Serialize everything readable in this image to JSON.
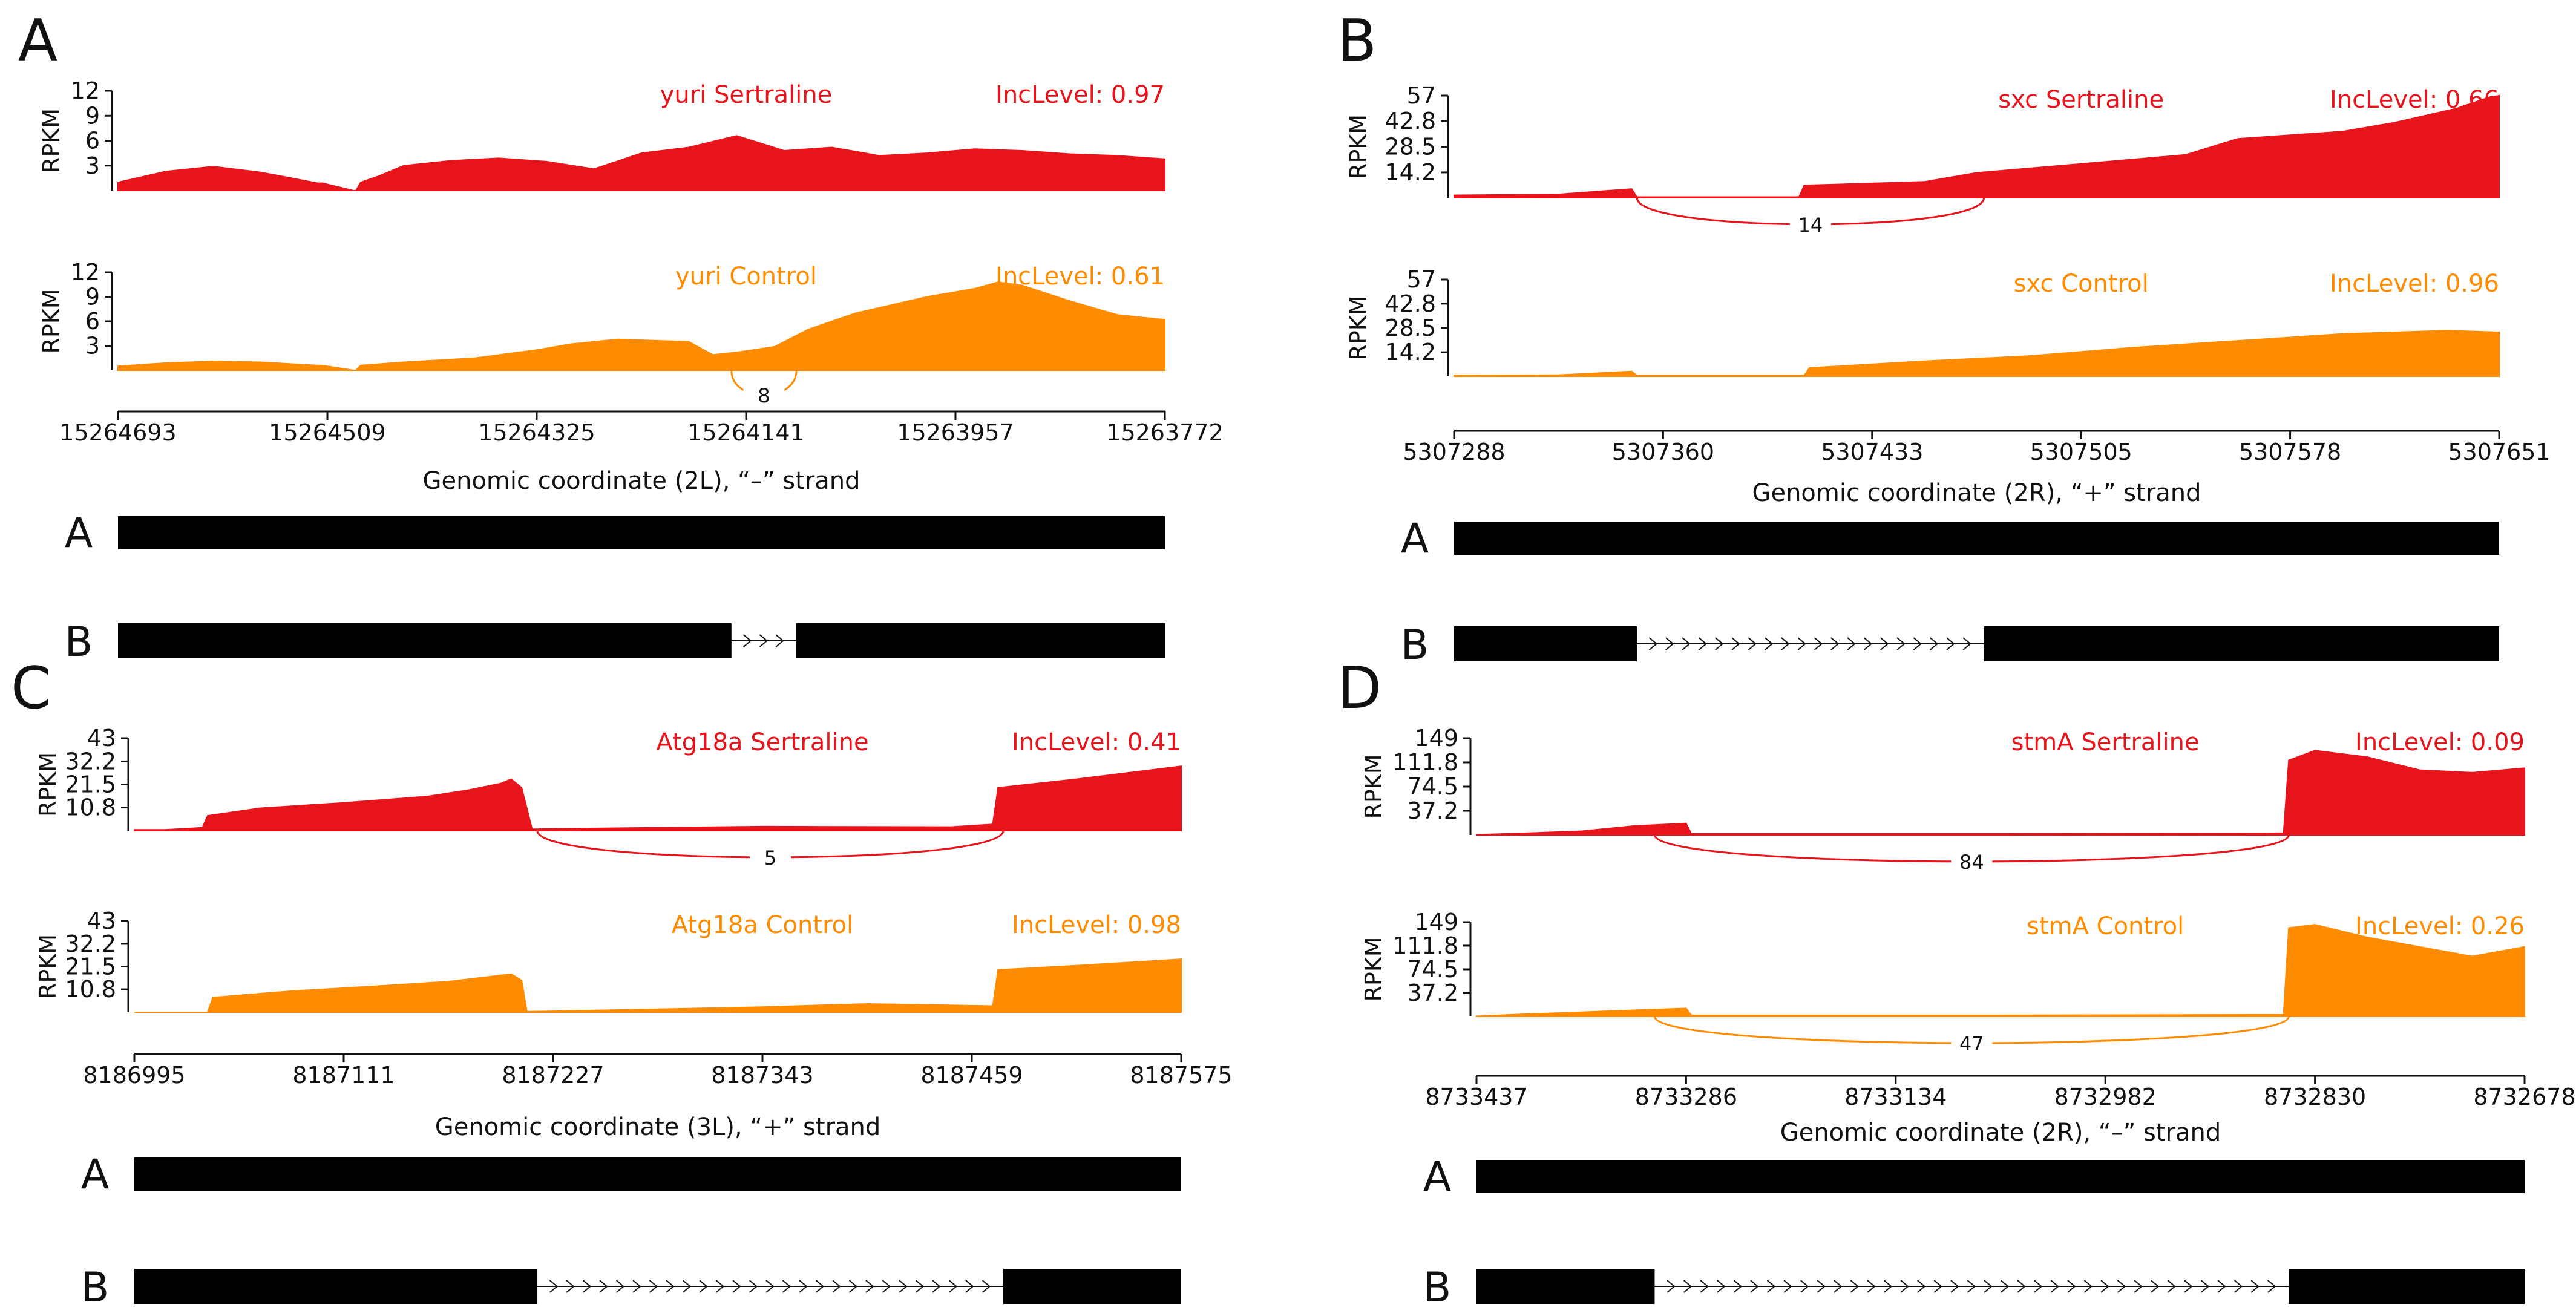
{
  "colors": {
    "sertraline": "#e8141b",
    "control": "#ff8c00",
    "gene": "#000000",
    "junction_label_bg": "#ffffff"
  },
  "chart_data": [
    {
      "panel": "A",
      "type": "area",
      "gene": "yuri",
      "xlabel": "Genomic coordinate (2L), “–” strand",
      "xticks": [
        "15264693",
        "15264509",
        "15264325",
        "15264141",
        "15263957",
        "15263772"
      ],
      "ylabel": "RPKM",
      "yticks": [
        "12",
        "9",
        "6",
        "3"
      ],
      "ylim": [
        0,
        12
      ],
      "series": [
        {
          "name": "yuri Sertraline",
          "inclevel": "IncLevel: 0.97",
          "junction_count": "",
          "profile": [
            [
              0,
              1.0
            ],
            [
              0.1,
              2.3
            ],
            [
              0.2,
              2.9
            ],
            [
              0.3,
              2.2
            ],
            [
              0.42,
              0.9
            ],
            [
              0.43,
              0.9
            ],
            [
              0.495,
              0.0
            ],
            [
              0.5,
              0.0
            ],
            [
              0.51,
              1.0
            ],
            [
              0.55,
              1.8
            ],
            [
              0.6,
              3.0
            ],
            [
              0.7,
              3.6
            ],
            [
              0.8,
              3.9
            ],
            [
              0.9,
              3.5
            ],
            [
              1.0,
              2.6
            ],
            [
              1.1,
              4.5
            ],
            [
              1.2,
              5.2
            ],
            [
              1.3,
              6.6
            ],
            [
              1.35,
              5.7
            ],
            [
              1.4,
              4.8
            ],
            [
              1.5,
              5.2
            ],
            [
              1.6,
              4.2
            ],
            [
              1.7,
              4.5
            ],
            [
              1.8,
              5.0
            ],
            [
              1.9,
              4.8
            ],
            [
              2.0,
              4.4
            ],
            [
              2.1,
              4.2
            ],
            [
              2.2,
              3.8
            ]
          ]
        },
        {
          "name": "yuri Control",
          "inclevel": "IncLevel: 0.61",
          "junction_count": "8",
          "profile": [
            [
              0,
              0.5
            ],
            [
              0.1,
              0.9
            ],
            [
              0.2,
              1.1
            ],
            [
              0.3,
              1.0
            ],
            [
              0.42,
              0.6
            ],
            [
              0.43,
              0.6
            ],
            [
              0.495,
              0.0
            ],
            [
              0.5,
              0.0
            ],
            [
              0.51,
              0.6
            ],
            [
              0.6,
              1.0
            ],
            [
              0.75,
              1.5
            ],
            [
              0.88,
              2.5
            ],
            [
              0.95,
              3.2
            ],
            [
              1.05,
              3.8
            ],
            [
              1.2,
              3.5
            ],
            [
              1.25,
              1.9
            ],
            [
              1.3,
              2.2
            ],
            [
              1.38,
              2.9
            ],
            [
              1.45,
              5.0
            ],
            [
              1.55,
              7.0
            ],
            [
              1.7,
              9.0
            ],
            [
              1.8,
              10.0
            ],
            [
              1.85,
              10.8
            ],
            [
              1.9,
              10.4
            ],
            [
              2.0,
              8.5
            ],
            [
              2.1,
              6.8
            ],
            [
              2.2,
              6.2
            ]
          ]
        }
      ],
      "junctions": [
        {
          "label": "8",
          "series": 1
        }
      ],
      "isoforms": [
        {
          "label": "A",
          "blocks": [
            [
              0,
              1
            ]
          ]
        },
        {
          "label": "B",
          "blocks": [
            [
              0,
              0.586
            ],
            [
              0.648,
              1
            ]
          ]
        }
      ]
    },
    {
      "panel": "B",
      "type": "area",
      "gene": "sxc",
      "xlabel": "Genomic coordinate (2R), “+” strand",
      "xticks": [
        "5307288",
        "5307360",
        "5307433",
        "5307505",
        "5307578",
        "5307651"
      ],
      "ylabel": "RPKM",
      "yticks": [
        "57",
        "42.8",
        "28.5",
        "14.2"
      ],
      "ylim": [
        0,
        57
      ],
      "series": [
        {
          "name": "sxc Sertraline",
          "inclevel": "IncLevel: 0.66",
          "junction_count": "14",
          "profile": [
            [
              0,
              1.5
            ],
            [
              0.1,
              2.0
            ],
            [
              0.17,
              5.0
            ],
            [
              0.175,
              0.5
            ],
            [
              0.33,
              0.5
            ],
            [
              0.335,
              7.0
            ],
            [
              0.45,
              9.0
            ],
            [
              0.5,
              14.0
            ],
            [
              0.6,
              19.0
            ],
            [
              0.7,
              24.0
            ],
            [
              0.75,
              33.0
            ],
            [
              0.85,
              37.0
            ],
            [
              0.9,
              42.0
            ],
            [
              0.96,
              50.0
            ],
            [
              0.99,
              56.0
            ],
            [
              1.0,
              57.0
            ]
          ]
        },
        {
          "name": "sxc Control",
          "inclevel": "IncLevel: 0.96",
          "junction_count": "",
          "profile": [
            [
              0,
              0.5
            ],
            [
              0.1,
              0.8
            ],
            [
              0.17,
              3.0
            ],
            [
              0.175,
              0.5
            ],
            [
              0.335,
              0.5
            ],
            [
              0.34,
              5.0
            ],
            [
              0.45,
              9.0
            ],
            [
              0.55,
              12.0
            ],
            [
              0.65,
              17.0
            ],
            [
              0.75,
              21.0
            ],
            [
              0.85,
              25.0
            ],
            [
              0.95,
              27.0
            ],
            [
              1.0,
              26.0
            ]
          ]
        }
      ],
      "junctions": [
        {
          "label": "14",
          "series": 0
        }
      ],
      "isoforms": [
        {
          "label": "A",
          "blocks": [
            [
              0,
              1
            ]
          ]
        },
        {
          "label": "B",
          "blocks": [
            [
              0,
              0.175
            ],
            [
              0.507,
              1
            ]
          ]
        }
      ]
    },
    {
      "panel": "C",
      "type": "area",
      "gene": "Atg18a",
      "xlabel": "Genomic coordinate (3L), “+” strand",
      "xticks": [
        "8186995",
        "8187111",
        "8187227",
        "8187343",
        "8187459",
        "8187575"
      ],
      "ylabel": "RPKM",
      "yticks": [
        "43",
        "32.2",
        "21.5",
        "10.8"
      ],
      "ylim": [
        0,
        43
      ],
      "series": [
        {
          "name": "Atg18a Sertraline",
          "inclevel": "IncLevel: 0.41",
          "junction_count": "5",
          "profile": [
            [
              0,
              0.5
            ],
            [
              0.03,
              0.5
            ],
            [
              0.065,
              1.5
            ],
            [
              0.07,
              7.0
            ],
            [
              0.12,
              10.5
            ],
            [
              0.2,
              13.0
            ],
            [
              0.28,
              16.0
            ],
            [
              0.32,
              19.0
            ],
            [
              0.35,
              22.0
            ],
            [
              0.36,
              24.0
            ],
            [
              0.37,
              20.0
            ],
            [
              0.38,
              0.8
            ],
            [
              0.5,
              1.5
            ],
            [
              0.6,
              2.0
            ],
            [
              0.78,
              1.8
            ],
            [
              0.82,
              3.0
            ],
            [
              0.825,
              20.0
            ],
            [
              0.9,
              24.0
            ],
            [
              1.0,
              30.0
            ]
          ]
        },
        {
          "name": "Atg18a Control",
          "inclevel": "IncLevel: 0.98",
          "junction_count": "",
          "profile": [
            [
              0,
              0
            ],
            [
              0.07,
              0
            ],
            [
              0.075,
              7.0
            ],
            [
              0.15,
              10.0
            ],
            [
              0.22,
              12.0
            ],
            [
              0.3,
              14.5
            ],
            [
              0.36,
              18.0
            ],
            [
              0.37,
              15.0
            ],
            [
              0.375,
              0.3
            ],
            [
              0.45,
              1.0
            ],
            [
              0.6,
              2.5
            ],
            [
              0.7,
              4.0
            ],
            [
              0.82,
              3.0
            ],
            [
              0.825,
              20.0
            ],
            [
              0.9,
              22.0
            ],
            [
              1.0,
              25.0
            ]
          ]
        }
      ],
      "junctions": [
        {
          "label": "5",
          "series": 0
        }
      ],
      "isoforms": [
        {
          "label": "A",
          "blocks": [
            [
              0,
              1
            ]
          ]
        },
        {
          "label": "B",
          "blocks": [
            [
              0,
              0.385
            ],
            [
              0.83,
              1
            ]
          ]
        }
      ]
    },
    {
      "panel": "D",
      "type": "area",
      "gene": "stmA",
      "xlabel": "Genomic coordinate (2R), “–” strand",
      "xticks": [
        "8733437",
        "8733286",
        "8733134",
        "8732982",
        "8732830",
        "8732678"
      ],
      "ylabel": "RPKM",
      "yticks": [
        "149",
        "111.8",
        "74.5",
        "37.2"
      ],
      "ylim": [
        0,
        149
      ],
      "series": [
        {
          "name": "stmA Sertraline",
          "inclevel": "IncLevel: 0.09",
          "junction_count": "84",
          "profile": [
            [
              0,
              0.5
            ],
            [
              0.05,
              3.0
            ],
            [
              0.1,
              6.0
            ],
            [
              0.15,
              14.0
            ],
            [
              0.2,
              18.0
            ],
            [
              0.205,
              2.0
            ],
            [
              0.5,
              2.0
            ],
            [
              0.75,
              2.5
            ],
            [
              0.77,
              3.0
            ],
            [
              0.775,
              115.0
            ],
            [
              0.8,
              130.0
            ],
            [
              0.85,
              120.0
            ],
            [
              0.9,
              100.0
            ],
            [
              0.95,
              96.0
            ],
            [
              1.0,
              103.0
            ]
          ]
        },
        {
          "name": "stmA Control",
          "inclevel": "IncLevel: 0.26",
          "junction_count": "47",
          "profile": [
            [
              0,
              0.5
            ],
            [
              0.05,
              4.0
            ],
            [
              0.1,
              7.0
            ],
            [
              0.15,
              10.0
            ],
            [
              0.2,
              13.0
            ],
            [
              0.205,
              2.0
            ],
            [
              0.5,
              2.0
            ],
            [
              0.77,
              3.0
            ],
            [
              0.775,
              140.0
            ],
            [
              0.8,
              145.0
            ],
            [
              0.85,
              125.0
            ],
            [
              0.9,
              110.0
            ],
            [
              0.95,
              95.0
            ],
            [
              1.0,
              110.0
            ]
          ]
        }
      ],
      "junctions": [
        {
          "label": "84",
          "series": 0
        },
        {
          "label": "47",
          "series": 1
        }
      ],
      "isoforms": [
        {
          "label": "A",
          "blocks": [
            [
              0,
              1
            ]
          ]
        },
        {
          "label": "B",
          "blocks": [
            [
              0,
              0.17
            ],
            [
              0.775,
              1
            ]
          ]
        }
      ]
    }
  ]
}
